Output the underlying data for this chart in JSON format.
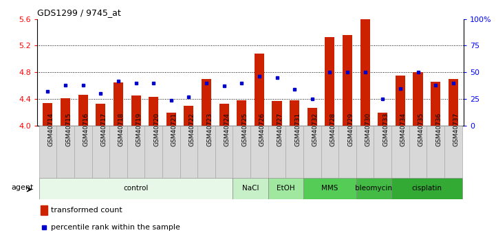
{
  "title": "GDS1299 / 9745_at",
  "samples": [
    "GSM40714",
    "GSM40715",
    "GSM40716",
    "GSM40717",
    "GSM40718",
    "GSM40719",
    "GSM40720",
    "GSM40721",
    "GSM40722",
    "GSM40723",
    "GSM40724",
    "GSM40725",
    "GSM40726",
    "GSM40727",
    "GSM40731",
    "GSM40732",
    "GSM40728",
    "GSM40729",
    "GSM40730",
    "GSM40733",
    "GSM40734",
    "GSM40735",
    "GSM40736",
    "GSM40737"
  ],
  "red_values": [
    4.34,
    4.41,
    4.46,
    4.33,
    4.65,
    4.45,
    4.43,
    4.19,
    4.3,
    4.7,
    4.33,
    4.38,
    5.08,
    4.37,
    4.38,
    4.27,
    5.33,
    5.36,
    5.6,
    4.19,
    4.75,
    4.8,
    4.66,
    4.7
  ],
  "blue_values": [
    32,
    38,
    38,
    30,
    42,
    40,
    40,
    24,
    27,
    40,
    37,
    40,
    46,
    45,
    34,
    25,
    50,
    50,
    50,
    25,
    35,
    50,
    38,
    40
  ],
  "groups": [
    {
      "label": "control",
      "start": 0,
      "end": 11,
      "color": "#e8f8e8"
    },
    {
      "label": "NaCl",
      "start": 11,
      "end": 13,
      "color": "#c8f0c8"
    },
    {
      "label": "EtOH",
      "start": 13,
      "end": 15,
      "color": "#a0e8a0"
    },
    {
      "label": "MMS",
      "start": 15,
      "end": 18,
      "color": "#55cc55"
    },
    {
      "label": "bleomycin",
      "start": 18,
      "end": 20,
      "color": "#44bb44"
    },
    {
      "label": "cisplatin",
      "start": 20,
      "end": 24,
      "color": "#33aa33"
    }
  ],
  "ylim_left": [
    4.0,
    5.6
  ],
  "ylim_right": [
    0,
    100
  ],
  "yticks_left": [
    4.0,
    4.4,
    4.8,
    5.2,
    5.6
  ],
  "yticks_right": [
    0,
    25,
    50,
    75,
    100
  ],
  "ytick_labels_right": [
    "0",
    "25",
    "50",
    "75",
    "100%"
  ],
  "grid_lines": [
    4.4,
    4.8,
    5.2
  ],
  "red_color": "#cc2200",
  "blue_color": "#0000cc",
  "bar_width": 0.55,
  "agent_label": "agent",
  "legend_red": "transformed count",
  "legend_blue": "percentile rank within the sample",
  "xtick_bg": "#d8d8d8"
}
